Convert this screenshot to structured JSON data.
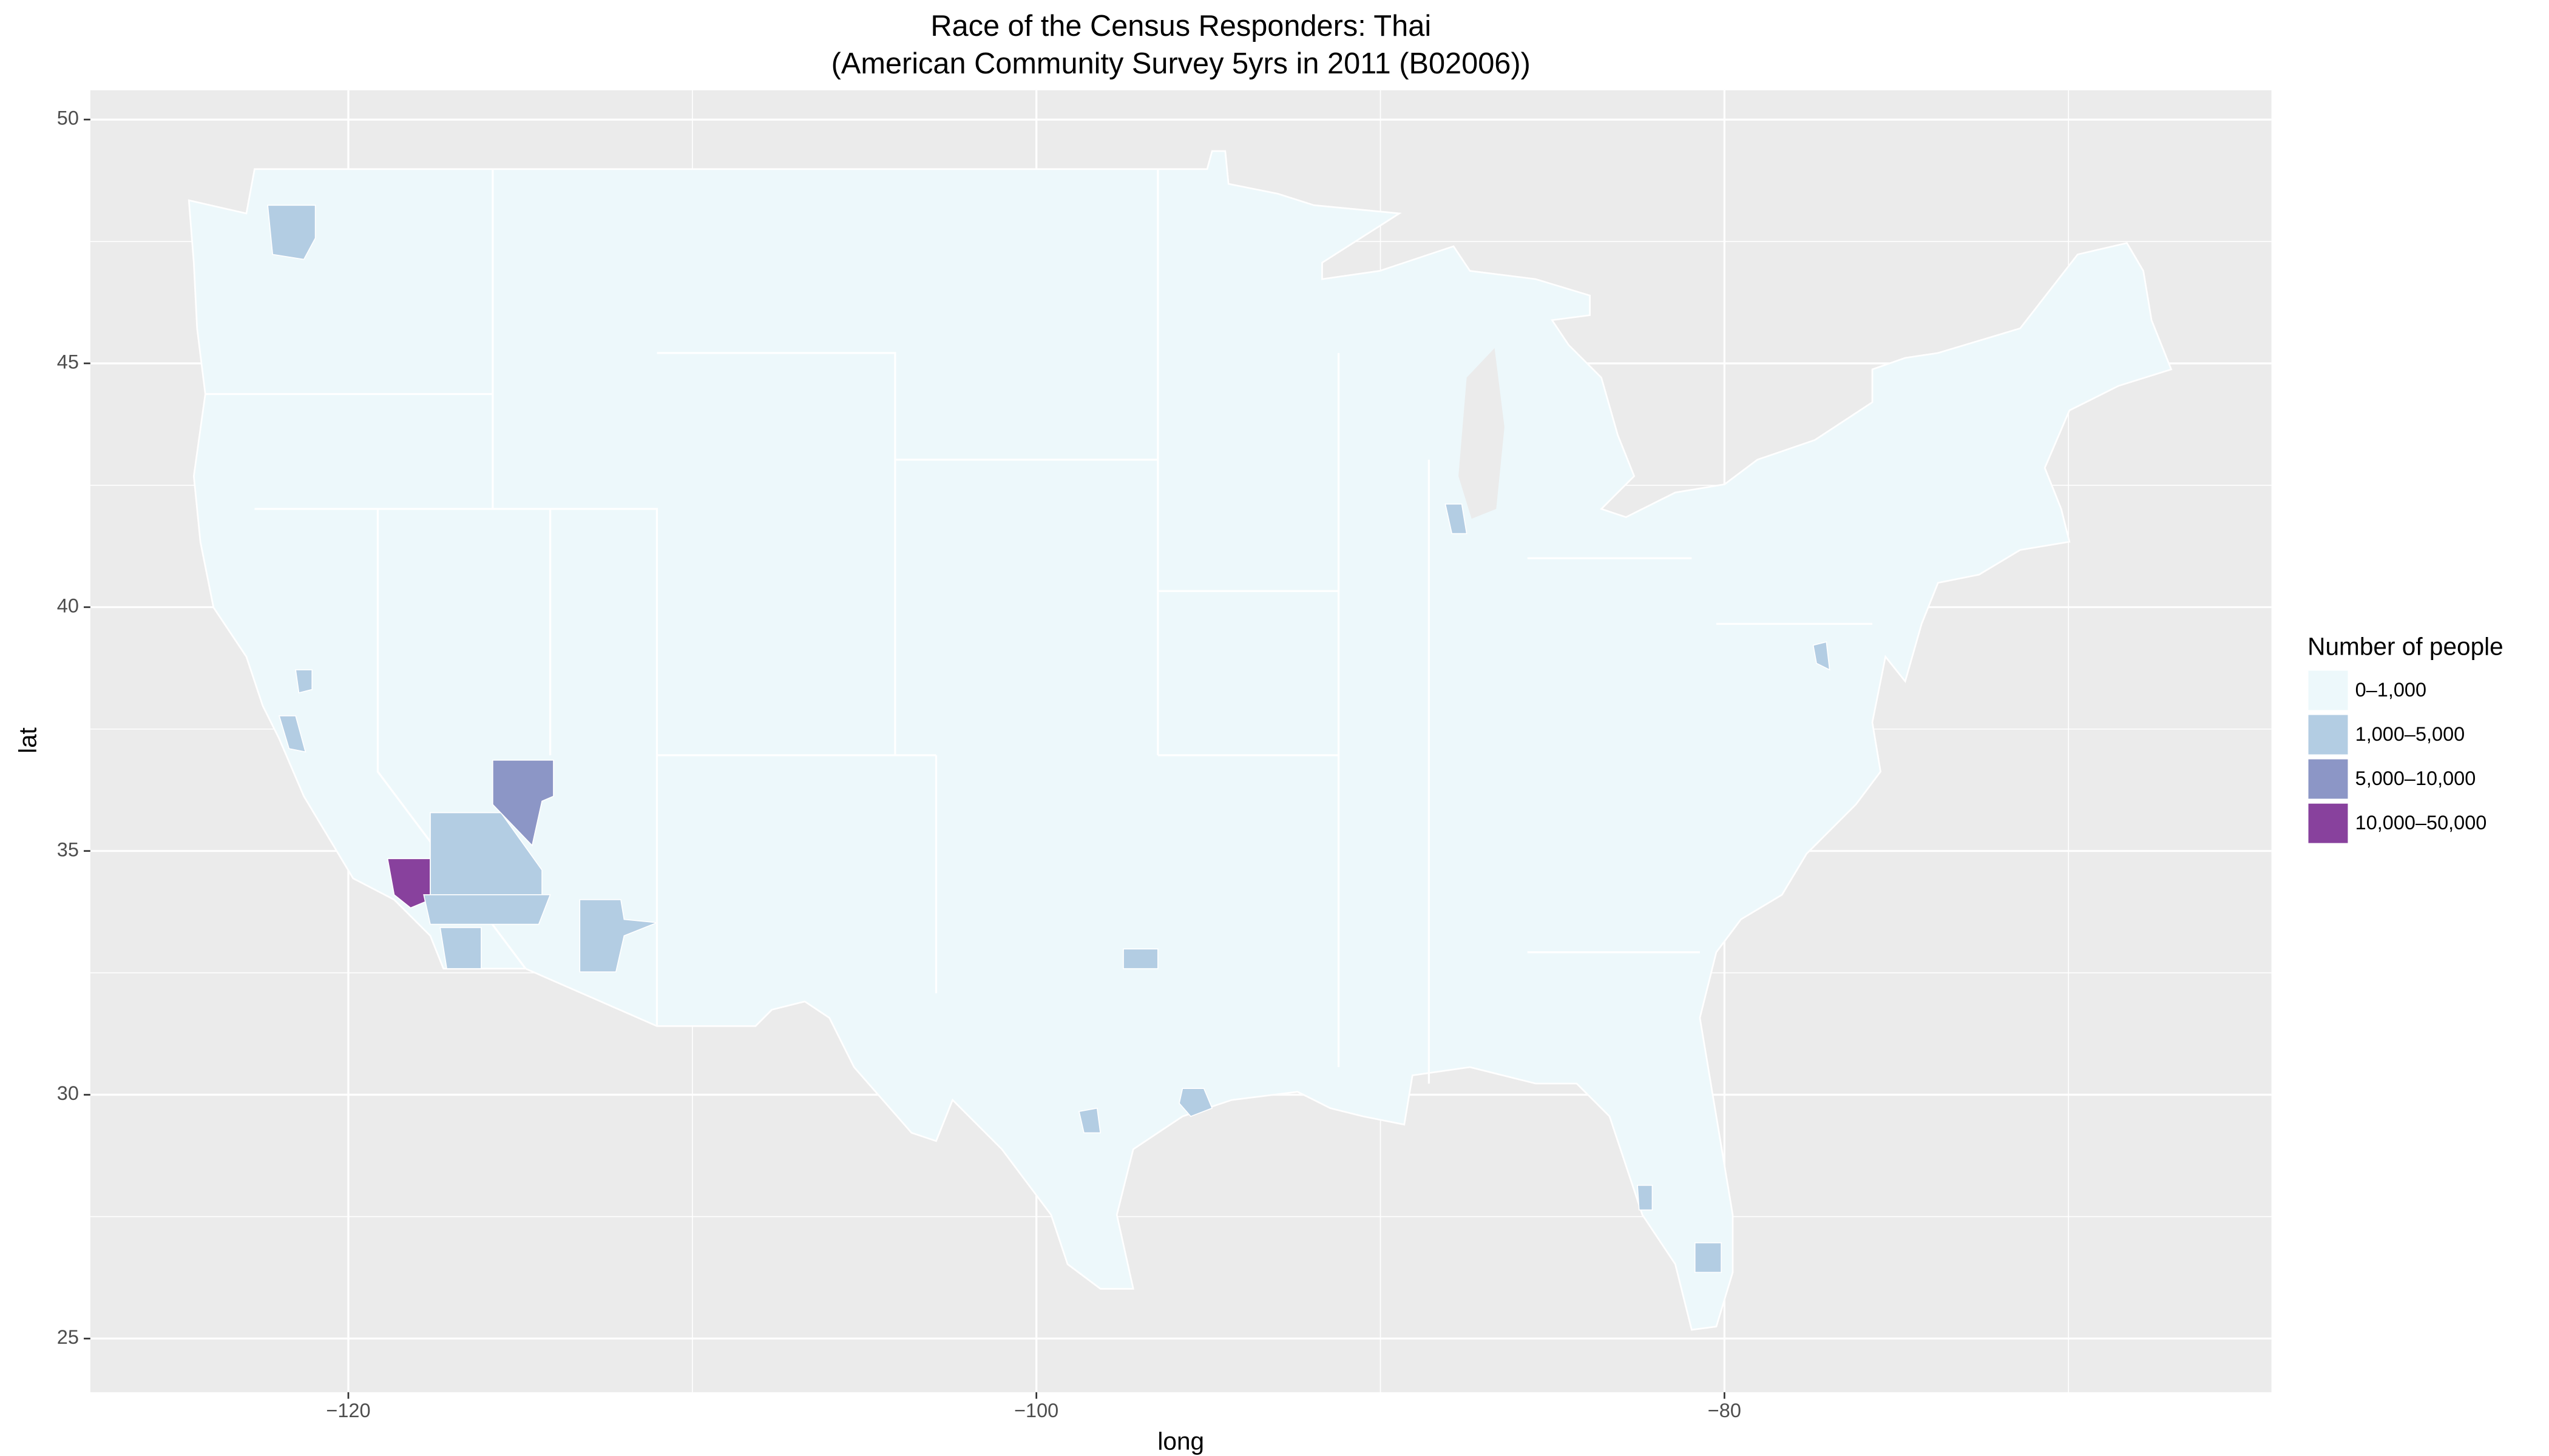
{
  "chart_data": {
    "type": "map",
    "title": "Race of the Census Responders: Thai",
    "subtitle": "(American Community Survey 5yrs in 2011 (B02006))",
    "x_label": "long",
    "y_label": "lat",
    "xlim": [
      -127.5,
      -64.1
    ],
    "ylim": [
      23.9,
      50.6
    ],
    "xticks": [
      {
        "value": -120,
        "label": "−120"
      },
      {
        "value": -100,
        "label": "−100"
      },
      {
        "value": -80,
        "label": "−80"
      }
    ],
    "yticks": [
      25,
      30,
      35,
      40,
      45,
      50
    ],
    "grid": true,
    "legend_title": "Number of people",
    "legend_position": "right",
    "categories": [
      "0–1,000",
      "1,000–5,000",
      "5,000–10,000",
      "10,000–50,000"
    ],
    "colors": [
      "#edf8fb",
      "#b3cde3",
      "#8c96c6",
      "#88419d"
    ]
  }
}
